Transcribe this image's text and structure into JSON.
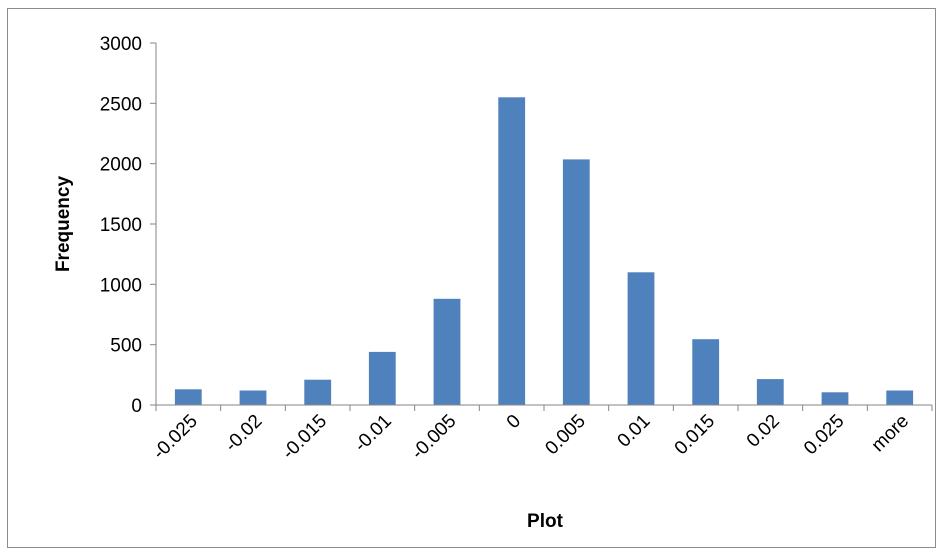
{
  "chart_data": {
    "type": "bar",
    "title": "",
    "xlabel": "Plot",
    "ylabel": "Frequency",
    "categories": [
      "-0.025",
      "-0.02",
      "-0.015",
      "-0.01",
      "-0.005",
      "0",
      "0.005",
      "0.01",
      "0.015",
      "0.02",
      "0.025",
      "more"
    ],
    "values": [
      130,
      120,
      210,
      440,
      880,
      2550,
      2035,
      1100,
      545,
      215,
      105,
      120
    ],
    "ylim": [
      0,
      3000
    ],
    "yticks": [
      "0",
      "500",
      "1000",
      "1500",
      "2000",
      "2500",
      "3000"
    ],
    "grid": false,
    "legend": "none",
    "bar_color": "#4f81bd",
    "axis_color": "#868686"
  }
}
